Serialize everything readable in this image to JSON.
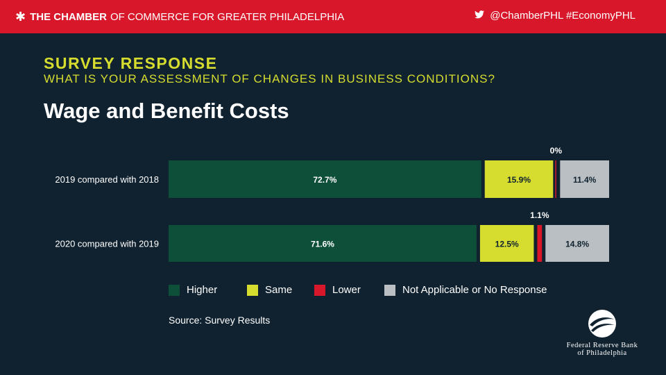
{
  "header": {
    "star_icon": "star-logo-icon",
    "org_bold": "THE CHAMBER",
    "org_rest": "OF COMMERCE FOR GREATER PHILADELPHIA",
    "handle": "@ChamberPHL #EconomyPHL",
    "twitter_icon": "twitter-bird-icon"
  },
  "heading": {
    "kicker": "SURVEY RESPONSE",
    "question": "WHAT IS YOUR ASSESSMENT OF CHANGES IN BUSINESS CONDITIONS?",
    "title": "Wage and Benefit Costs"
  },
  "colors": {
    "background": "#102230",
    "header": "#d8172a",
    "higher": "#0e4f3a",
    "same": "#d6dd2f",
    "lower": "#d8172a",
    "na": "#b9bfc2"
  },
  "chart_data": {
    "type": "bar",
    "stacked": true,
    "orientation": "horizontal",
    "categories": [
      "2019 compared with 2018",
      "2020 compared with 2019"
    ],
    "series": [
      {
        "name": "Higher",
        "values": [
          72.7,
          71.6
        ],
        "labels": [
          "72.7%",
          "71.6%"
        ],
        "color": "#0e4f3a"
      },
      {
        "name": "Same",
        "values": [
          15.9,
          12.5
        ],
        "labels": [
          "15.9%",
          "12.5%"
        ],
        "color": "#d6dd2f"
      },
      {
        "name": "Lower",
        "values": [
          0,
          1.1
        ],
        "labels": [
          "0%",
          "1.1%"
        ],
        "color": "#d8172a"
      },
      {
        "name": "Not Applicable or No Response",
        "values": [
          11.4,
          14.8
        ],
        "labels": [
          "11.4%",
          "14.8%"
        ],
        "color": "#b9bfc2"
      }
    ],
    "xlim": [
      0,
      100
    ],
    "legend": "bottom"
  },
  "legend": {
    "higher": "Higher",
    "same": "Same",
    "lower": "Lower",
    "na": "Not Applicable or No Response"
  },
  "source": "Source: Survey Results",
  "footer": {
    "emblem_icon": "eagle-emblem-icon",
    "bank_line1": "Federal Reserve Bank",
    "bank_line2": "of Philadelphia"
  }
}
